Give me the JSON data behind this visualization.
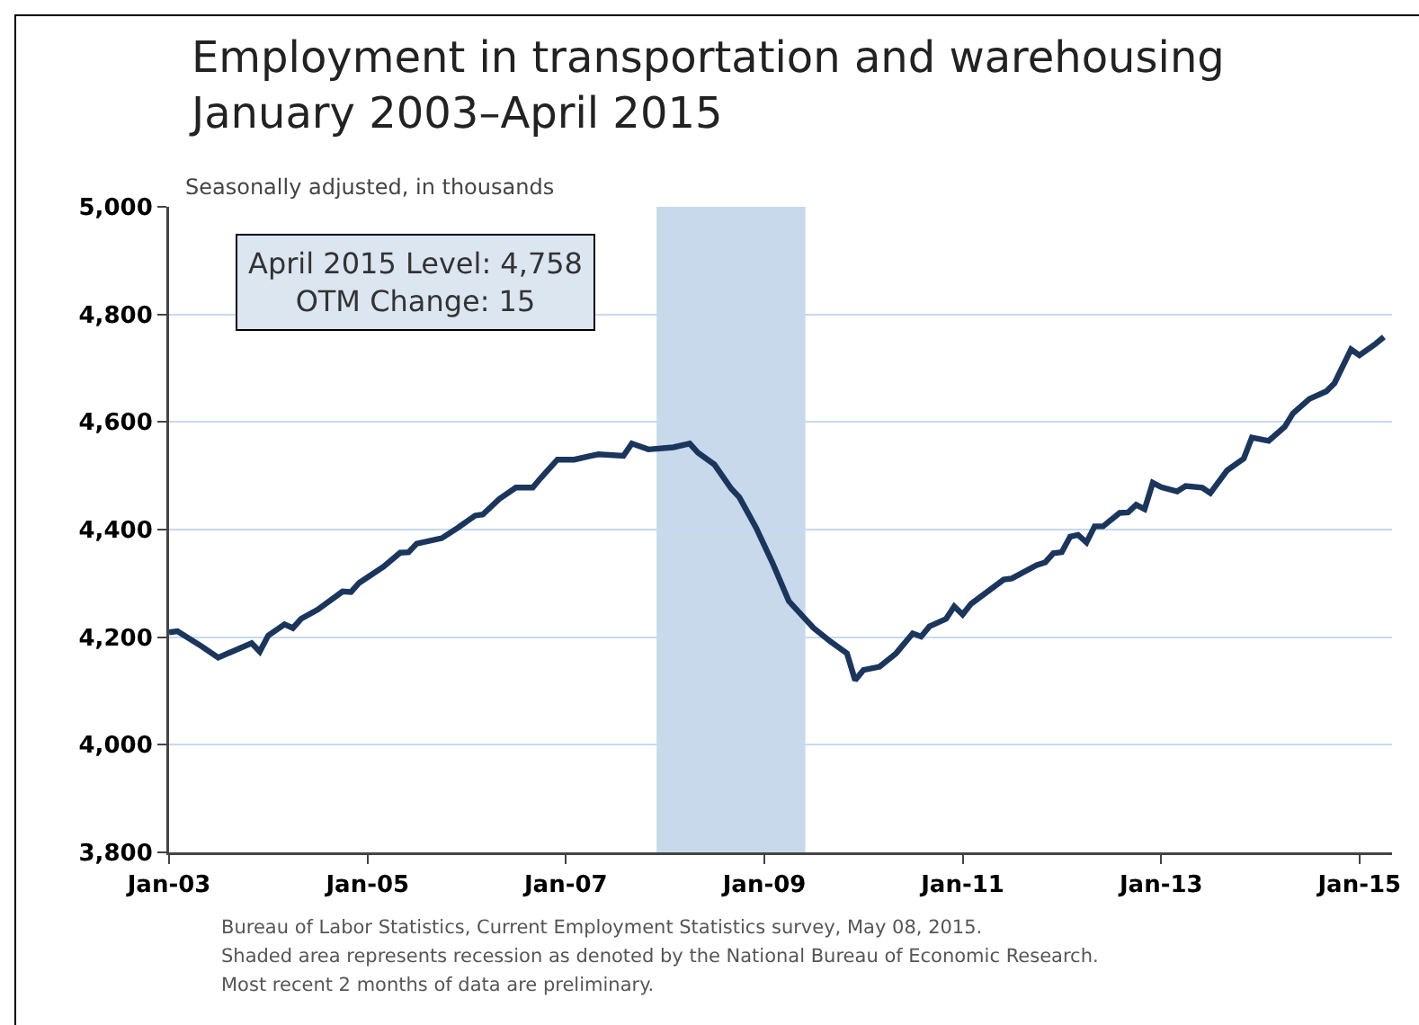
{
  "chart_data": {
    "type": "line",
    "title": "Employment in transportation and warehousing\nJanuary 2003–April 2015",
    "subtitle": "Seasonally adjusted, in thousands",
    "annotations": [
      "April 2015 Level: 4,758",
      "OTM Change: 15",
      "Bureau of Labor Statistics, Current Employment Statistics survey, May 08, 2015.",
      "Shaded area represents recession as denoted by the National Bureau of Economic Research.",
      "Most recent 2 months of data are preliminary."
    ],
    "series": [
      {
        "color": "#1b365d",
        "x": [
          "2003-01",
          "2003-02",
          "2003-05",
          "2003-07",
          "2003-11",
          "2003-12",
          "2004-01",
          "2004-03",
          "2004-04",
          "2004-05",
          "2004-07",
          "2004-10",
          "2004-11",
          "2004-12",
          "2005-03",
          "2005-05",
          "2005-06",
          "2005-07",
          "2005-10",
          "2005-12",
          "2006-02",
          "2006-03",
          "2006-05",
          "2006-07",
          "2006-09",
          "2006-10",
          "2006-12",
          "2007-02",
          "2007-04",
          "2007-05",
          "2007-08",
          "2007-09",
          "2007-11",
          "2008-02",
          "2008-04",
          "2008-05",
          "2008-07",
          "2008-09",
          "2008-10",
          "2008-12",
          "2009-02",
          "2009-04",
          "2009-07",
          "2009-09",
          "2009-11",
          "2009-12",
          "2010-01",
          "2010-03",
          "2010-05",
          "2010-07",
          "2010-08",
          "2010-09",
          "2010-11",
          "2010-12",
          "2011-01",
          "2011-02",
          "2011-06",
          "2011-07",
          "2011-10",
          "2011-11",
          "2011-12",
          "2012-01",
          "2012-02",
          "2012-03",
          "2012-04",
          "2012-05",
          "2012-06",
          "2012-08",
          "2012-09",
          "2012-10",
          "2012-11",
          "2012-12",
          "2013-01",
          "2013-03",
          "2013-04",
          "2013-06",
          "2013-07",
          "2013-09",
          "2013-11",
          "2013-12",
          "2014-02",
          "2014-04",
          "2014-05",
          "2014-07",
          "2014-09",
          "2014-10",
          "2014-12",
          "2015-01",
          "2015-03",
          "2015-04"
        ],
        "values": [
          4209,
          4211,
          4183,
          4162,
          4189,
          4173,
          4203,
          4224,
          4217,
          4234,
          4251,
          4285,
          4284,
          4301,
          4331,
          4357,
          4358,
          4374,
          4384,
          4404,
          4426,
          4428,
          4457,
          4478,
          4478,
          4496,
          4530,
          4530,
          4537,
          4540,
          4537,
          4560,
          4549,
          4553,
          4560,
          4543,
          4521,
          4476,
          4460,
          4404,
          4337,
          4267,
          4217,
          4192,
          4170,
          4120,
          4139,
          4145,
          4170,
          4207,
          4201,
          4220,
          4234,
          4257,
          4242,
          4262,
          4307,
          4309,
          4334,
          4339,
          4356,
          4358,
          4387,
          4390,
          4376,
          4406,
          4406,
          4431,
          4432,
          4446,
          4438,
          4487,
          4479,
          4471,
          4481,
          4478,
          4468,
          4510,
          4532,
          4571,
          4565,
          4591,
          4616,
          4643,
          4657,
          4672,
          4735,
          4724,
          4745,
          4758
        ]
      }
    ],
    "xlim": [
      "2003-01",
      "2015-05"
    ],
    "xticks": [
      {
        "value": "2003-01",
        "label": "Jan-03"
      },
      {
        "value": "2005-01",
        "label": "Jan-05"
      },
      {
        "value": "2007-01",
        "label": "Jan-07"
      },
      {
        "value": "2009-01",
        "label": "Jan-09"
      },
      {
        "value": "2011-01",
        "label": "Jan-11"
      },
      {
        "value": "2013-01",
        "label": "Jan-13"
      },
      {
        "value": "2015-01",
        "label": "Jan-15"
      }
    ],
    "ylim": [
      3800,
      5000
    ],
    "yticks": [
      {
        "value": 3800,
        "label": "3,800"
      },
      {
        "value": 4000,
        "label": "4,000"
      },
      {
        "value": 4200,
        "label": "4,200"
      },
      {
        "value": 4400,
        "label": "4,400"
      },
      {
        "value": 4600,
        "label": "4,600"
      },
      {
        "value": 4800,
        "label": "4,800"
      },
      {
        "value": 5000,
        "label": "5,000"
      }
    ],
    "bands": [
      {
        "axis": "x",
        "from": "2007-12",
        "to": "2009-06",
        "color": "#c9d9ec"
      }
    ],
    "grid": "y",
    "marker": "none",
    "line_style": "solid"
  }
}
